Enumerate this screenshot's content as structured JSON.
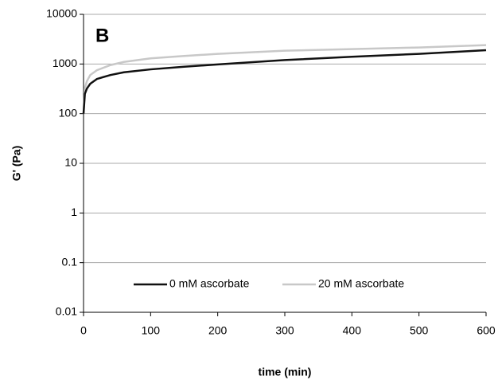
{
  "chart_data": {
    "type": "line",
    "panel_label": "B",
    "xlabel": "time (min)",
    "ylabel": "G' (Pa)",
    "x": [
      0,
      2,
      5,
      10,
      20,
      40,
      60,
      100,
      150,
      200,
      300,
      400,
      500,
      600
    ],
    "series": [
      {
        "name": "0 mM ascorbate",
        "color": "#111111",
        "values": [
          100,
          250,
          320,
          400,
          500,
          600,
          680,
          780,
          880,
          980,
          1200,
          1400,
          1600,
          1900
        ]
      },
      {
        "name": "20 mM ascorbate",
        "color": "#c8c8c8",
        "values": [
          100,
          330,
          450,
          600,
          750,
          950,
          1100,
          1300,
          1450,
          1600,
          1850,
          2000,
          2150,
          2400
        ]
      }
    ],
    "xlim": [
      0,
      600
    ],
    "xticks": [
      0,
      100,
      200,
      300,
      400,
      500,
      600
    ],
    "ylim": [
      0.01,
      10000
    ],
    "yticks": [
      0.01,
      0.1,
      1,
      10,
      100,
      1000,
      10000
    ],
    "ylog": true,
    "grid": true,
    "legend": "bottom"
  }
}
